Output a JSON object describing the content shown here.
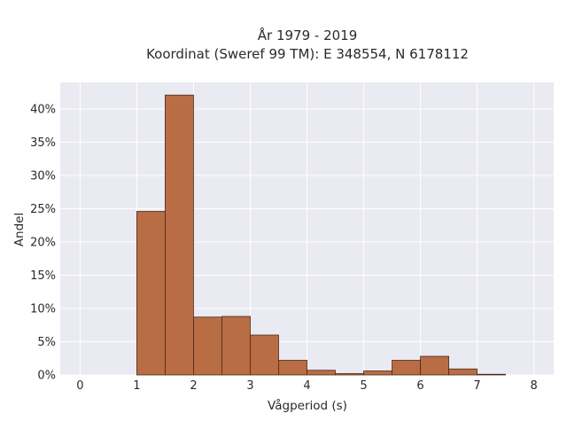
{
  "chart_data": {
    "type": "bar",
    "title_line1": "År 1979 - 2019",
    "title_line2": "Koordinat (Sweref 99 TM): E 348554, N 6178112",
    "xlabel": "Vågperiod (s)",
    "ylabel": "Andel",
    "xlim": [
      -0.35,
      8.35
    ],
    "ylim": [
      0,
      44
    ],
    "x_ticks": [
      0,
      1,
      2,
      3,
      4,
      5,
      6,
      7,
      8
    ],
    "y_ticks": [
      0,
      5,
      10,
      15,
      20,
      25,
      30,
      35,
      40
    ],
    "y_tick_labels": [
      "0%",
      "5%",
      "10%",
      "15%",
      "20%",
      "25%",
      "30%",
      "35%",
      "40%"
    ],
    "bin_width": 0.5,
    "bins": [
      {
        "x0": 1.0,
        "x1": 1.5,
        "value": 24.6
      },
      {
        "x0": 1.5,
        "x1": 2.0,
        "value": 42.1
      },
      {
        "x0": 2.0,
        "x1": 2.5,
        "value": 8.7
      },
      {
        "x0": 2.5,
        "x1": 3.0,
        "value": 8.8
      },
      {
        "x0": 3.0,
        "x1": 3.5,
        "value": 6.0
      },
      {
        "x0": 3.5,
        "x1": 4.0,
        "value": 2.2
      },
      {
        "x0": 4.0,
        "x1": 4.5,
        "value": 0.7
      },
      {
        "x0": 4.5,
        "x1": 5.0,
        "value": 0.2
      },
      {
        "x0": 5.0,
        "x1": 5.5,
        "value": 0.6
      },
      {
        "x0": 5.5,
        "x1": 6.0,
        "value": 2.2
      },
      {
        "x0": 6.0,
        "x1": 6.5,
        "value": 2.8
      },
      {
        "x0": 6.5,
        "x1": 7.0,
        "value": 0.9
      },
      {
        "x0": 7.0,
        "x1": 7.5,
        "value": 0.1
      }
    ],
    "grid": true,
    "colors": {
      "bar_fill": "#b86d44",
      "bar_edge": "#4a2a1a",
      "plot_background": "#eaeaf2",
      "grid": "#ffffff"
    }
  }
}
